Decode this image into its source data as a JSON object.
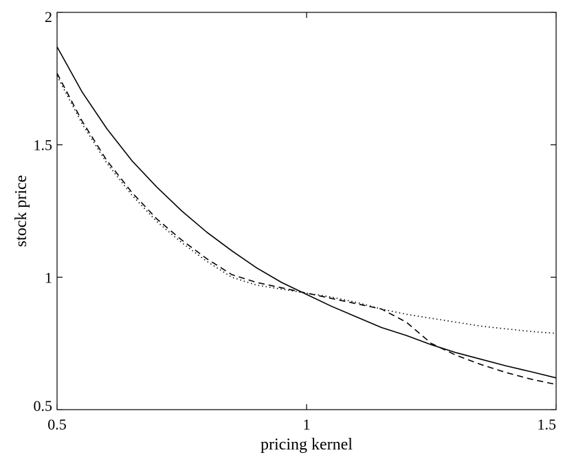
{
  "chart_data": {
    "type": "line",
    "title": "",
    "xlabel": "pricing kernel",
    "ylabel": "stock price",
    "xlim": [
      0.5,
      1.5
    ],
    "ylim": [
      0.5,
      2
    ],
    "xticks": [
      0.5,
      1,
      1.5
    ],
    "yticks": [
      0.5,
      1,
      1.5,
      2
    ],
    "xtick_labels": [
      "0.5",
      "1",
      "1.5"
    ],
    "ytick_labels": [
      "0.5",
      "1",
      "1.5",
      "2"
    ],
    "grid": false,
    "legend": "none",
    "series": [
      {
        "style": "solid",
        "color": "#000000",
        "x": [
          0.5,
          0.55,
          0.6,
          0.65,
          0.7,
          0.75,
          0.8,
          0.85,
          0.9,
          0.95,
          1.0,
          1.05,
          1.1,
          1.15,
          1.2,
          1.25,
          1.3,
          1.35,
          1.4,
          1.45,
          1.5
        ],
        "y": [
          1.87,
          1.7,
          1.56,
          1.44,
          1.34,
          1.25,
          1.17,
          1.1,
          1.035,
          0.98,
          0.935,
          0.89,
          0.85,
          0.81,
          0.78,
          0.745,
          0.715,
          0.69,
          0.665,
          0.643,
          0.62
        ]
      },
      {
        "style": "dashed",
        "color": "#000000",
        "x": [
          0.5,
          0.55,
          0.6,
          0.65,
          0.7,
          0.75,
          0.8,
          0.85,
          0.9,
          0.95,
          1.0,
          1.05,
          1.1,
          1.15,
          1.2,
          1.25,
          1.3,
          1.35,
          1.4,
          1.45,
          1.5
        ],
        "y": [
          1.77,
          1.59,
          1.44,
          1.32,
          1.22,
          1.14,
          1.07,
          1.01,
          0.98,
          0.96,
          0.94,
          0.92,
          0.9,
          0.88,
          0.83,
          0.75,
          0.705,
          0.67,
          0.64,
          0.615,
          0.595
        ]
      },
      {
        "style": "dotted",
        "color": "#000000",
        "x": [
          0.5,
          0.55,
          0.6,
          0.65,
          0.7,
          0.75,
          0.8,
          0.85,
          0.9,
          0.95,
          1.0,
          1.05,
          1.1,
          1.15,
          1.2,
          1.25,
          1.3,
          1.35,
          1.4,
          1.45,
          1.5
        ],
        "y": [
          1.76,
          1.58,
          1.43,
          1.31,
          1.21,
          1.13,
          1.06,
          1.0,
          0.97,
          0.955,
          0.94,
          0.925,
          0.905,
          0.88,
          0.86,
          0.845,
          0.83,
          0.815,
          0.805,
          0.795,
          0.788
        ]
      }
    ]
  }
}
